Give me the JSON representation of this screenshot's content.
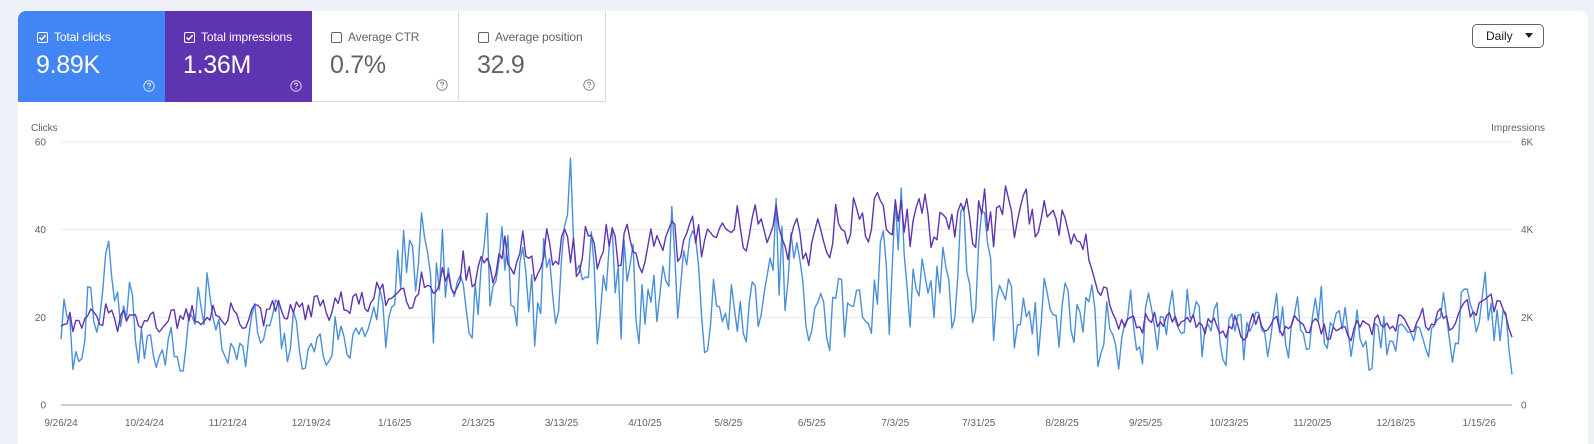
{
  "tiles": [
    {
      "label": "Total clicks",
      "value": "9.89K",
      "selected": true,
      "color": "#4285f4"
    },
    {
      "label": "Total impressions",
      "value": "1.36M",
      "selected": true,
      "color": "#5e35b1"
    },
    {
      "label": "Average CTR",
      "value": "0.7%",
      "selected": false
    },
    {
      "label": "Average position",
      "value": "32.9",
      "selected": false
    }
  ],
  "granularity": {
    "selected": "Daily"
  },
  "colors": {
    "clicks": "#4a90d9",
    "impressions": "#5e35b1",
    "grid": "#e8eaed",
    "axis": "#9aa0a6"
  },
  "chart_data": {
    "type": "line",
    "x_range": [
      "2024-09-26",
      "2026-01-26"
    ],
    "x_ticks": [
      "9/26/24",
      "10/24/24",
      "11/21/24",
      "12/19/24",
      "1/16/25",
      "2/13/25",
      "3/13/25",
      "4/10/25",
      "5/8/25",
      "6/5/25",
      "7/3/25",
      "7/31/25",
      "8/28/25",
      "9/25/25",
      "10/23/25",
      "11/20/25",
      "12/18/25",
      "1/15/26"
    ],
    "y_left": {
      "label": "Clicks",
      "range": [
        0,
        60
      ],
      "ticks": [
        "0",
        "20",
        "40",
        "60"
      ]
    },
    "y_right": {
      "label": "Impressions",
      "range": [
        0,
        6000
      ],
      "ticks": [
        "0",
        "2K",
        "4K",
        "6K"
      ]
    },
    "grid": true,
    "legend": "none",
    "series": [
      {
        "name": "Clicks",
        "axis": "left",
        "anchors": [
          [
            "2024-09-26",
            18
          ],
          [
            "2024-10-01",
            12
          ],
          [
            "2024-10-08",
            22
          ],
          [
            "2024-10-13",
            28
          ],
          [
            "2024-10-24",
            14
          ],
          [
            "2024-11-06",
            11
          ],
          [
            "2024-11-12",
            26
          ],
          [
            "2024-11-21",
            12
          ],
          [
            "2024-12-05",
            18
          ],
          [
            "2024-12-19",
            12
          ],
          [
            "2025-01-02",
            16
          ],
          [
            "2025-01-16",
            22
          ],
          [
            "2025-01-20",
            35
          ],
          [
            "2025-01-30",
            26
          ],
          [
            "2025-02-13",
            28
          ],
          [
            "2025-02-20",
            35
          ],
          [
            "2025-03-02",
            25
          ],
          [
            "2025-03-13",
            30
          ],
          [
            "2025-03-15",
            48
          ],
          [
            "2025-03-20",
            28
          ],
          [
            "2025-04-01",
            30
          ],
          [
            "2025-04-10",
            24
          ],
          [
            "2025-04-20",
            32
          ],
          [
            "2025-04-24",
            37
          ],
          [
            "2025-05-01",
            18
          ],
          [
            "2025-05-08",
            22
          ],
          [
            "2025-05-15",
            19
          ],
          [
            "2025-05-27",
            35
          ],
          [
            "2025-06-05",
            20
          ],
          [
            "2025-06-19",
            23
          ],
          [
            "2025-06-28",
            26
          ],
          [
            "2025-07-03",
            38
          ],
          [
            "2025-07-10",
            29
          ],
          [
            "2025-07-17",
            28
          ],
          [
            "2025-07-31",
            33
          ],
          [
            "2025-08-07",
            24
          ],
          [
            "2025-08-14",
            22
          ],
          [
            "2025-08-28",
            21
          ],
          [
            "2025-09-06",
            22
          ],
          [
            "2025-09-11",
            16
          ],
          [
            "2025-09-25",
            18
          ],
          [
            "2025-10-09",
            20
          ],
          [
            "2025-10-23",
            17
          ],
          [
            "2025-11-06",
            19
          ],
          [
            "2025-11-20",
            18
          ],
          [
            "2025-11-27",
            25
          ],
          [
            "2025-12-04",
            15
          ],
          [
            "2025-12-18",
            14
          ],
          [
            "2026-01-01",
            17
          ],
          [
            "2026-01-15",
            20
          ],
          [
            "2026-01-19",
            24
          ],
          [
            "2026-01-26",
            11
          ]
        ]
      },
      {
        "name": "Impressions",
        "axis": "right",
        "anchors": [
          [
            "2024-09-26",
            1900
          ],
          [
            "2024-10-10",
            2000
          ],
          [
            "2024-10-24",
            1900
          ],
          [
            "2024-11-07",
            2000
          ],
          [
            "2024-11-21",
            2000
          ],
          [
            "2024-12-05",
            2100
          ],
          [
            "2024-12-19",
            2200
          ],
          [
            "2025-01-02",
            2300
          ],
          [
            "2025-01-16",
            2500
          ],
          [
            "2025-01-30",
            2800
          ],
          [
            "2025-02-13",
            3100
          ],
          [
            "2025-02-27",
            3400
          ],
          [
            "2025-03-13",
            3500
          ],
          [
            "2025-03-27",
            3600
          ],
          [
            "2025-04-10",
            3500
          ],
          [
            "2025-04-24",
            3800
          ],
          [
            "2025-05-08",
            4100
          ],
          [
            "2025-05-22",
            4000
          ],
          [
            "2025-06-05",
            3700
          ],
          [
            "2025-06-19",
            4300
          ],
          [
            "2025-07-03",
            4300
          ],
          [
            "2025-07-17",
            4200
          ],
          [
            "2025-07-31",
            4300
          ],
          [
            "2025-08-14",
            4300
          ],
          [
            "2025-08-28",
            4100
          ],
          [
            "2025-09-04",
            3800
          ],
          [
            "2025-09-08",
            2700
          ],
          [
            "2025-09-18",
            1900
          ],
          [
            "2025-10-02",
            1900
          ],
          [
            "2025-10-16",
            1800
          ],
          [
            "2025-10-30",
            1800
          ],
          [
            "2025-11-13",
            1800
          ],
          [
            "2025-11-27",
            1700
          ],
          [
            "2025-12-11",
            1800
          ],
          [
            "2025-12-25",
            1900
          ],
          [
            "2026-01-08",
            2000
          ],
          [
            "2026-01-19",
            2600
          ],
          [
            "2026-01-26",
            1600
          ]
        ]
      }
    ]
  }
}
